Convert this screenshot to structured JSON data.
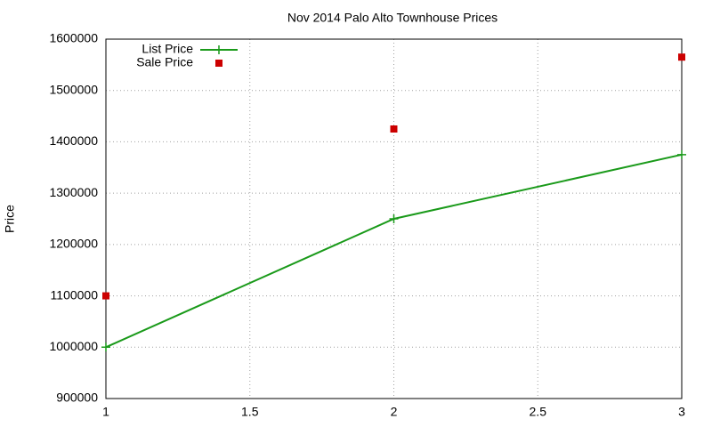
{
  "chart_data": {
    "type": "line",
    "title": "Nov 2014 Palo Alto Townhouse Prices",
    "y_label": "Price",
    "x": [
      1,
      2,
      3
    ],
    "series": [
      {
        "name": "List Price",
        "color": "#1a9a1a",
        "mode": "linespoints",
        "values": [
          1000000,
          1250000,
          1375000
        ]
      },
      {
        "name": "Sale Price",
        "color": "#cc0000",
        "mode": "points",
        "values": [
          1100000,
          1425000,
          1565000
        ]
      }
    ],
    "xlim": [
      1,
      3
    ],
    "xticks": [
      1,
      1.5,
      2,
      2.5,
      3
    ],
    "ylim": [
      900000,
      1600000
    ],
    "yticks": [
      900000,
      1000000,
      1100000,
      1200000,
      1300000,
      1400000,
      1500000,
      1600000
    ],
    "grid": true,
    "legend": "top-left"
  }
}
